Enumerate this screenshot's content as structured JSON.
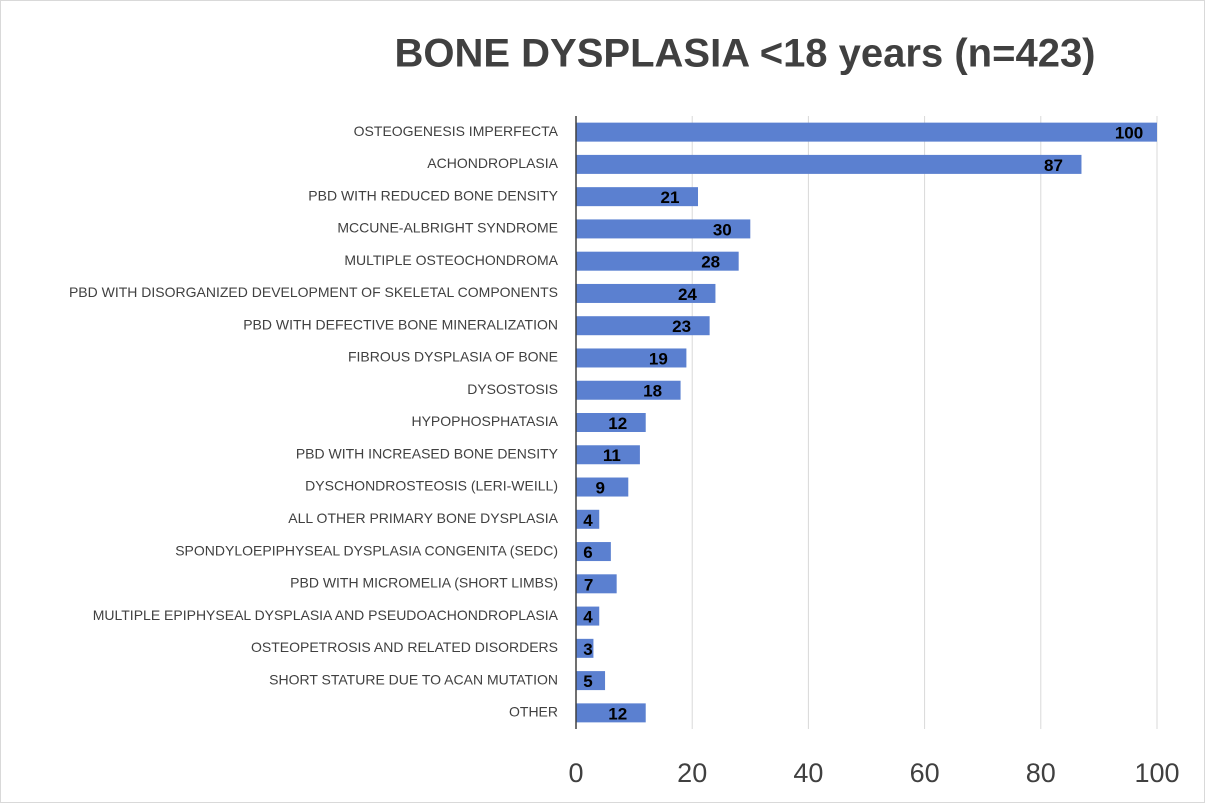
{
  "chart_data": {
    "type": "bar",
    "orientation": "horizontal",
    "title": "BONE DYSPLASIA <18 years (n=423)",
    "categories": [
      "OSTEOGENESIS IMPERFECTA",
      "ACHONDROPLASIA",
      "PBD WITH REDUCED BONE DENSITY",
      "MCCUNE-ALBRIGHT SYNDROME",
      "MULTIPLE OSTEOCHONDROMA",
      "PBD WITH DISORGANIZED DEVELOPMENT OF SKELETAL COMPONENTS",
      "PBD WITH DEFECTIVE BONE MINERALIZATION",
      "FIBROUS DYSPLASIA OF BONE",
      "DYSOSTOSIS",
      "HYPOPHOSPHATASIA",
      "PBD WITH INCREASED BONE DENSITY",
      "DYSCHONDROSTEOSIS (LERI-WEILL)",
      "ALL OTHER PRIMARY BONE DYSPLASIA",
      "SPONDYLOEPIPHYSEAL DYSPLASIA CONGENITA (SEDC)",
      "PBD WITH MICROMELIA (SHORT LIMBS)",
      "MULTIPLE EPIPHYSEAL DYSPLASIA AND PSEUDOACHONDROPLASIA",
      "OSTEOPETROSIS AND RELATED DISORDERS",
      "SHORT STATURE DUE TO ACAN MUTATION",
      "OTHER"
    ],
    "values": [
      100,
      87,
      21,
      30,
      28,
      24,
      23,
      19,
      18,
      12,
      11,
      9,
      4,
      6,
      7,
      4,
      3,
      5,
      12
    ],
    "color": "#5b80d0",
    "xlim": [
      0,
      100
    ],
    "xticks": [
      0,
      20,
      40,
      60,
      80,
      100
    ],
    "grid": true
  }
}
